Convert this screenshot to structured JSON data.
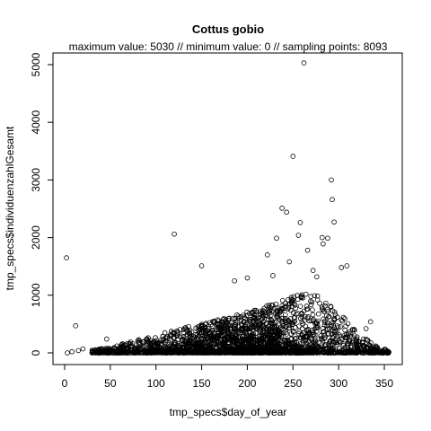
{
  "chart_data": {
    "type": "scatter",
    "title": "Cottus gobio",
    "subtitle": "maximum value: 5030  //  minimum value: 0  // sampling points: 8093",
    "xlabel": "tmp_specs$day_of_year",
    "ylabel": "tmp_specs$individuenzahlGesamt",
    "xlim": [
      0,
      360
    ],
    "ylim": [
      0,
      5100
    ],
    "xticks": [
      0,
      50,
      100,
      150,
      200,
      250,
      300,
      350
    ],
    "yticks": [
      0,
      1000,
      2000,
      3000,
      4000,
      5000
    ],
    "grid": false,
    "marker": "open-circle",
    "point_color": "#000000",
    "outliers": [
      {
        "x": 2,
        "y": 1650
      },
      {
        "x": 120,
        "y": 2060
      },
      {
        "x": 150,
        "y": 1510
      },
      {
        "x": 238,
        "y": 2510
      },
      {
        "x": 243,
        "y": 2440
      },
      {
        "x": 250,
        "y": 3410
      },
      {
        "x": 258,
        "y": 2260
      },
      {
        "x": 262,
        "y": 5030
      },
      {
        "x": 292,
        "y": 3000
      },
      {
        "x": 293,
        "y": 2660
      },
      {
        "x": 295,
        "y": 2270
      },
      {
        "x": 288,
        "y": 1990
      },
      {
        "x": 282,
        "y": 2000
      },
      {
        "x": 232,
        "y": 1990
      },
      {
        "x": 256,
        "y": 2040
      },
      {
        "x": 266,
        "y": 1780
      },
      {
        "x": 283,
        "y": 1890
      },
      {
        "x": 303,
        "y": 1480
      },
      {
        "x": 309,
        "y": 1510
      },
      {
        "x": 12,
        "y": 470
      },
      {
        "x": 3,
        "y": 0
      },
      {
        "x": 8,
        "y": 20
      },
      {
        "x": 15,
        "y": 40
      },
      {
        "x": 20,
        "y": 70
      },
      {
        "x": 36,
        "y": 30
      },
      {
        "x": 46,
        "y": 240
      },
      {
        "x": 186,
        "y": 1250
      },
      {
        "x": 200,
        "y": 1300
      },
      {
        "x": 222,
        "y": 1700
      },
      {
        "x": 228,
        "y": 1340
      },
      {
        "x": 246,
        "y": 1580
      },
      {
        "x": 272,
        "y": 1430
      },
      {
        "x": 276,
        "y": 1320
      },
      {
        "x": 335,
        "y": 540
      },
      {
        "x": 330,
        "y": 420
      },
      {
        "x": 350,
        "y": 60
      }
    ],
    "bulk_envelope": [
      {
        "x": 40,
        "y": 80
      },
      {
        "x": 80,
        "y": 250
      },
      {
        "x": 120,
        "y": 450
      },
      {
        "x": 160,
        "y": 600
      },
      {
        "x": 200,
        "y": 800
      },
      {
        "x": 240,
        "y": 1050
      },
      {
        "x": 262,
        "y": 1200
      },
      {
        "x": 280,
        "y": 1100
      },
      {
        "x": 300,
        "y": 800
      },
      {
        "x": 320,
        "y": 400
      },
      {
        "x": 340,
        "y": 150
      },
      {
        "x": 355,
        "y": 40
      }
    ]
  }
}
